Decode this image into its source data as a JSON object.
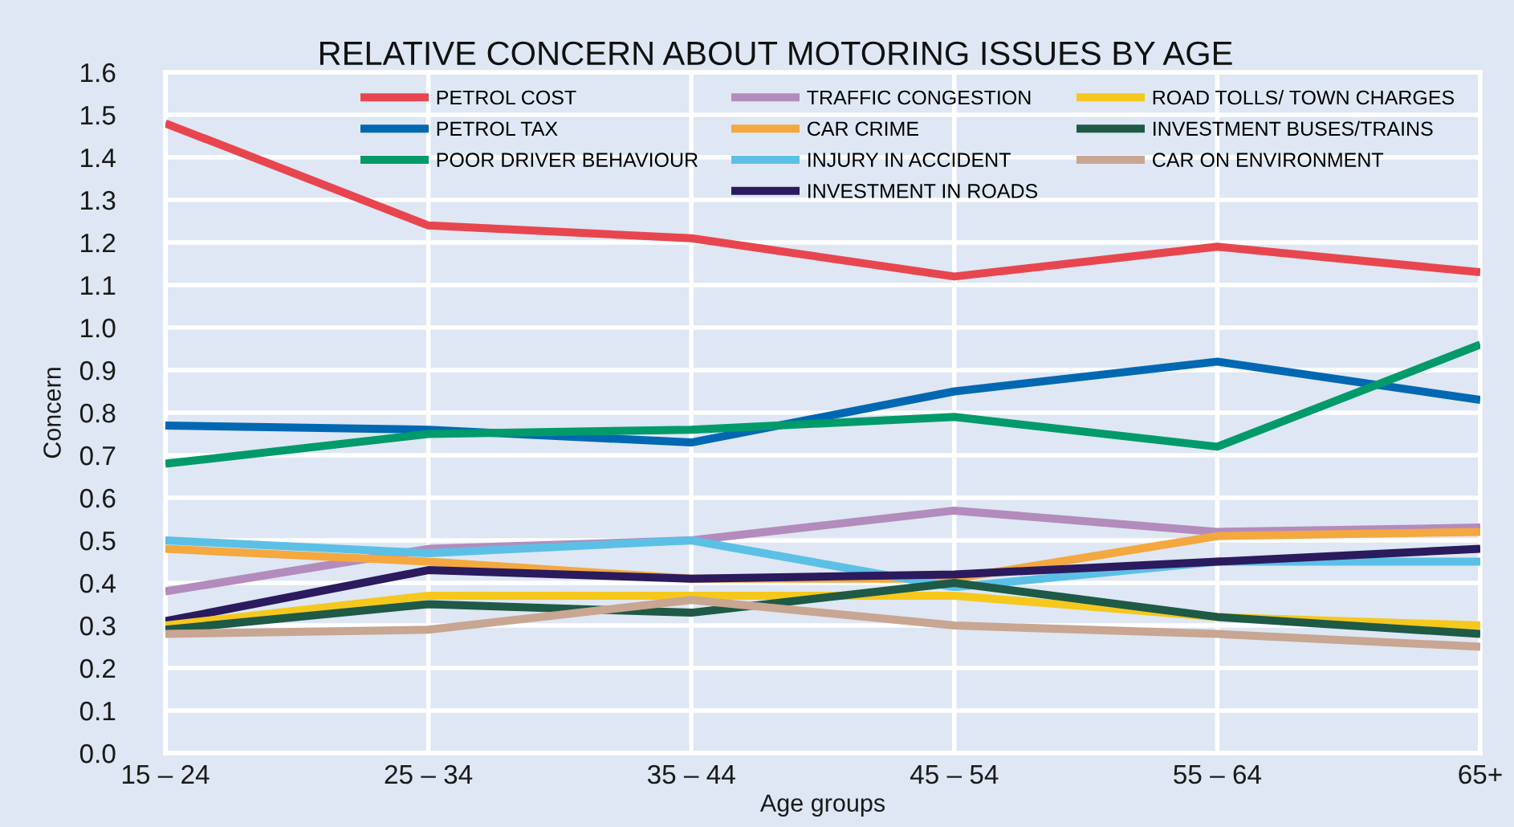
{
  "chart_data": {
    "type": "line",
    "title": "RELATIVE CONCERN ABOUT MOTORING ISSUES BY AGE",
    "xlabel": "Age groups",
    "ylabel": "Concern",
    "categories": [
      "15 – 24",
      "25 – 34",
      "35 – 44",
      "45 – 54",
      "55 – 64",
      "65+"
    ],
    "ylim": [
      0,
      1.6
    ],
    "yticks": [
      {
        "value": 0,
        "label": "0.0"
      },
      0.1,
      0.2,
      0.3,
      0.4,
      0.5,
      0.6,
      0.7,
      0.8,
      0.9,
      {
        "value": 1,
        "label": "1.0"
      },
      1.1,
      1.2,
      1.3,
      1.4,
      1.5,
      1.6
    ],
    "grid": true,
    "legend": "top",
    "series": [
      {
        "name": "PETROL COST",
        "color": "#e8464f",
        "values": [
          1.48,
          1.24,
          1.21,
          1.12,
          1.19,
          1.13
        ]
      },
      {
        "name": "PETROL TAX",
        "color": "#0068b3",
        "values": [
          0.77,
          0.76,
          0.73,
          0.85,
          0.92,
          0.83
        ]
      },
      {
        "name": "POOR DRIVER BEHAVIOUR",
        "color": "#009a6b",
        "values": [
          0.68,
          0.75,
          0.76,
          0.79,
          0.72,
          0.96
        ]
      },
      {
        "name": "TRAFFIC CONGESTION",
        "color": "#b48bbd",
        "values": [
          0.38,
          0.48,
          0.5,
          0.57,
          0.52,
          0.53
        ]
      },
      {
        "name": "CAR CRIME",
        "color": "#f4a83f",
        "values": [
          0.48,
          0.45,
          0.41,
          0.41,
          0.51,
          0.52
        ]
      },
      {
        "name": "INJURY IN ACCIDENT",
        "color": "#5cc0e6",
        "values": [
          0.5,
          0.47,
          0.5,
          0.39,
          0.45,
          0.45
        ]
      },
      {
        "name": "INVESTMENT IN ROADS",
        "color": "#2b1a5e",
        "values": [
          0.31,
          0.43,
          0.41,
          0.42,
          0.45,
          0.48
        ]
      },
      {
        "name": "ROAD TOLLS/ TOWN CHARGES",
        "color": "#f6c81e",
        "values": [
          0.3,
          0.37,
          0.37,
          0.37,
          0.32,
          0.3
        ]
      },
      {
        "name": "INVESTMENT BUSES/TRAINS",
        "color": "#1e5a46",
        "values": [
          0.29,
          0.35,
          0.33,
          0.4,
          0.32,
          0.28
        ]
      },
      {
        "name": "CAR ON ENVIRONMENT",
        "color": "#c8a691",
        "values": [
          0.28,
          0.29,
          0.36,
          0.3,
          0.28,
          0.25
        ]
      }
    ]
  }
}
